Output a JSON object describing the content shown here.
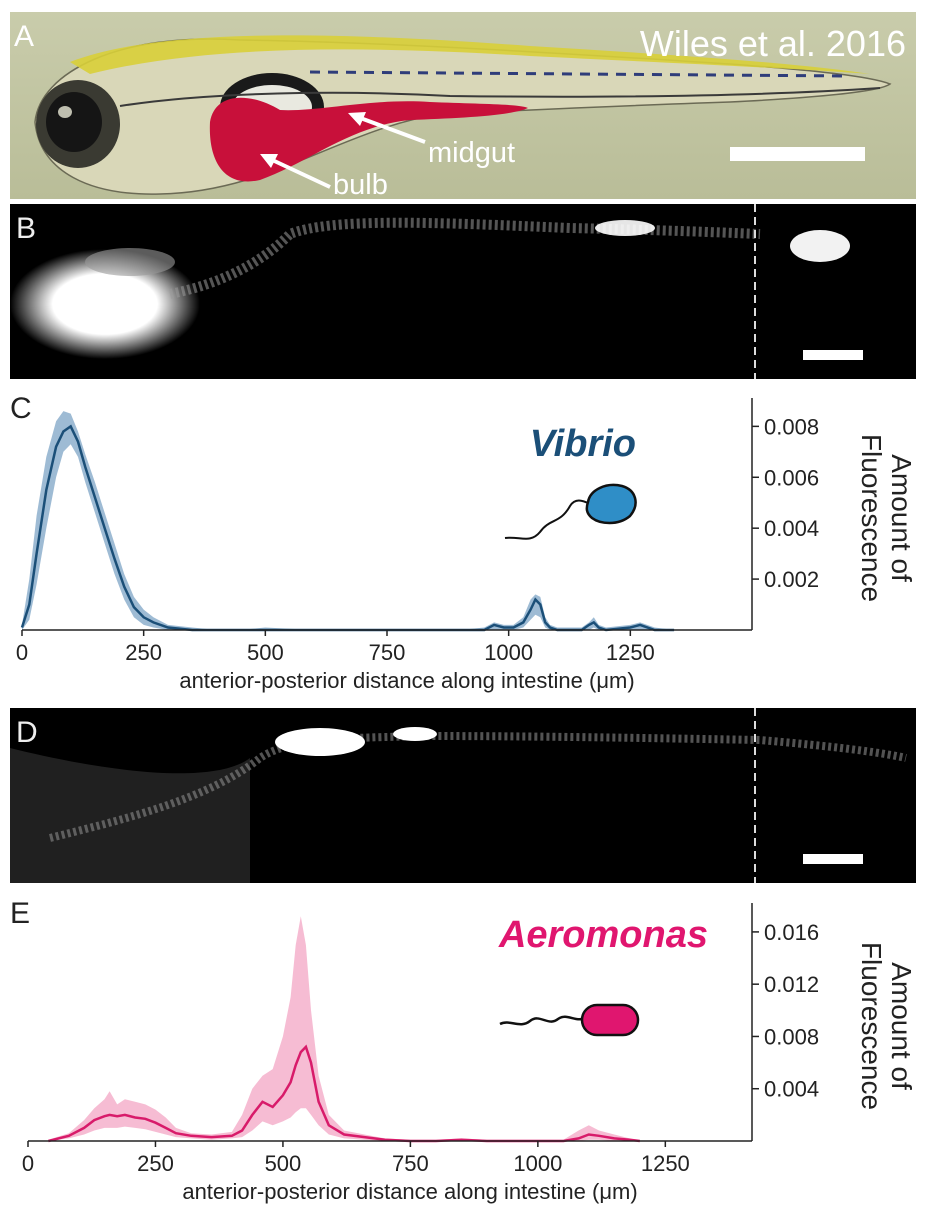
{
  "panelA": {
    "label": "A",
    "credit": "Wiles et al. 2016",
    "annotations": {
      "midgut": "midgut",
      "bulb": "bulb"
    }
  },
  "panelB": {
    "label": "B"
  },
  "panelD": {
    "label": "D"
  },
  "chart_data": [
    {
      "type": "area",
      "panel_label": "C",
      "title": "Vibrio",
      "title_color": "#1b4f78",
      "series_color": "#1b4f78",
      "band_color": "#7ea4c6",
      "xlabel": "anterior-posterior distance along intestine (μm)",
      "ylabel": "Amount of Fluorescence",
      "xlim": [
        0,
        1500
      ],
      "ylim": [
        0,
        0.0088
      ],
      "xticks": [
        0,
        250,
        500,
        750,
        1000,
        1250
      ],
      "xtick_labels": [
        "0",
        "250",
        "500",
        "750",
        "1000",
        "1250"
      ],
      "yticks": [
        0.002,
        0.004,
        0.006,
        0.008
      ],
      "ytick_labels": [
        "0.002",
        "0.004",
        "0.006",
        "0.008"
      ],
      "y_axis_side": "right",
      "grid": false,
      "series": [
        {
          "x": [
            0,
            15,
            30,
            50,
            70,
            85,
            100,
            115,
            130,
            150,
            170,
            190,
            210,
            230,
            250,
            270,
            300,
            350,
            400,
            450,
            500,
            600,
            700,
            800,
            900,
            950,
            970,
            990,
            1010,
            1030,
            1045,
            1055,
            1065,
            1075,
            1085,
            1100,
            1150,
            1165,
            1175,
            1185,
            1200,
            1250,
            1270,
            1300,
            1340
          ],
          "mean": [
            0.0001,
            0.001,
            0.003,
            0.0055,
            0.0072,
            0.0078,
            0.008,
            0.0074,
            0.0064,
            0.0052,
            0.004,
            0.0028,
            0.0017,
            0.0009,
            0.0005,
            0.0003,
            0.0001,
            0.0,
            0.0,
            0.0,
            0.0,
            0.0,
            0.0,
            0.0,
            0.0,
            0.0,
            0.0002,
            0.0001,
            0.0001,
            0.0003,
            0.0008,
            0.0012,
            0.001,
            0.0003,
            0.0001,
            0.0,
            0.0,
            0.0002,
            0.0003,
            0.0001,
            0.0,
            0.0001,
            0.0002,
            0.0,
            0.0
          ],
          "upper": [
            0.0002,
            0.002,
            0.0045,
            0.0068,
            0.0082,
            0.0086,
            0.0085,
            0.0078,
            0.0069,
            0.0058,
            0.0046,
            0.0034,
            0.0022,
            0.0013,
            0.0008,
            0.0005,
            0.0002,
            0.0001,
            0.0,
            0.0,
            0.0001,
            0.0,
            0.0,
            0.0,
            0.0,
            0.0001,
            0.0003,
            0.0002,
            0.0002,
            0.0005,
            0.0012,
            0.0014,
            0.0013,
            0.0005,
            0.0002,
            0.0001,
            0.0001,
            0.0003,
            0.0005,
            0.0002,
            0.0001,
            0.0002,
            0.0003,
            0.0001,
            0.0
          ],
          "lower": [
            0.0,
            0.0004,
            0.0018,
            0.004,
            0.006,
            0.007,
            0.0073,
            0.0068,
            0.0058,
            0.0046,
            0.0034,
            0.0022,
            0.0012,
            0.0005,
            0.0002,
            0.0001,
            0.0,
            0.0,
            0.0,
            0.0,
            0.0,
            0.0,
            0.0,
            0.0,
            0.0,
            0.0,
            0.0,
            0.0,
            0.0,
            0.0001,
            0.0004,
            0.0006,
            0.0005,
            0.0001,
            0.0,
            0.0,
            0.0,
            0.0,
            0.0001,
            0.0,
            0.0,
            0.0,
            0.0,
            0.0,
            0.0
          ]
        }
      ]
    },
    {
      "type": "area",
      "panel_label": "E",
      "title": "Aeromonas",
      "title_color": "#e0166f",
      "series_color": "#d81b6a",
      "band_color": "#f3a5c4",
      "xlabel": "anterior-posterior distance along intestine (μm)",
      "ylabel": "Amount of Fluorescence",
      "xlim": [
        0,
        1420
      ],
      "ylim": [
        0,
        0.0176
      ],
      "xticks": [
        0,
        250,
        500,
        750,
        1000,
        1250
      ],
      "xtick_labels": [
        "0",
        "250",
        "500",
        "750",
        "1000",
        "1250"
      ],
      "yticks": [
        0.004,
        0.008,
        0.012,
        0.016
      ],
      "ytick_labels": [
        "0.004",
        "0.008",
        "0.012",
        "0.016"
      ],
      "y_axis_side": "right",
      "grid": false,
      "series": [
        {
          "x": [
            40,
            80,
            110,
            130,
            150,
            160,
            175,
            190,
            210,
            230,
            250,
            270,
            290,
            320,
            360,
            400,
            420,
            440,
            460,
            480,
            500,
            515,
            525,
            535,
            545,
            555,
            570,
            590,
            620,
            660,
            700,
            750,
            800,
            850,
            900,
            950,
            1000,
            1050,
            1080,
            1100,
            1120,
            1150,
            1180,
            1200
          ],
          "mean": [
            0.0,
            0.0004,
            0.001,
            0.0016,
            0.0019,
            0.002,
            0.0019,
            0.002,
            0.0018,
            0.0017,
            0.0014,
            0.001,
            0.0006,
            0.0004,
            0.0003,
            0.0004,
            0.0008,
            0.002,
            0.003,
            0.0026,
            0.0035,
            0.0045,
            0.0058,
            0.0068,
            0.0072,
            0.006,
            0.003,
            0.0012,
            0.0005,
            0.0003,
            0.0001,
            0.0,
            0.0,
            0.0001,
            0.0,
            0.0,
            0.0,
            0.0,
            0.0002,
            0.0005,
            0.0004,
            0.0002,
            0.0001,
            0.0
          ],
          "upper": [
            0.0001,
            0.0006,
            0.0016,
            0.0025,
            0.0032,
            0.0038,
            0.0028,
            0.0032,
            0.003,
            0.0028,
            0.0024,
            0.0018,
            0.001,
            0.0006,
            0.0005,
            0.0007,
            0.002,
            0.004,
            0.005,
            0.0055,
            0.008,
            0.011,
            0.015,
            0.0172,
            0.015,
            0.01,
            0.005,
            0.002,
            0.0008,
            0.0005,
            0.0002,
            0.0001,
            0.0001,
            0.0002,
            0.0001,
            0.0001,
            0.0001,
            0.0001,
            0.0008,
            0.0012,
            0.0008,
            0.0005,
            0.0002,
            0.0
          ],
          "lower": [
            0.0,
            0.0002,
            0.0005,
            0.0008,
            0.001,
            0.001,
            0.001,
            0.0011,
            0.001,
            0.0009,
            0.0007,
            0.0005,
            0.0003,
            0.0002,
            0.0001,
            0.0002,
            0.0003,
            0.0008,
            0.0015,
            0.0012,
            0.0015,
            0.0018,
            0.0022,
            0.0025,
            0.0025,
            0.002,
            0.0012,
            0.0005,
            0.0002,
            0.0001,
            0.0,
            0.0,
            0.0,
            0.0,
            0.0,
            0.0,
            0.0,
            0.0,
            0.0,
            0.0001,
            0.0001,
            0.0,
            0.0,
            0.0
          ]
        }
      ]
    }
  ]
}
